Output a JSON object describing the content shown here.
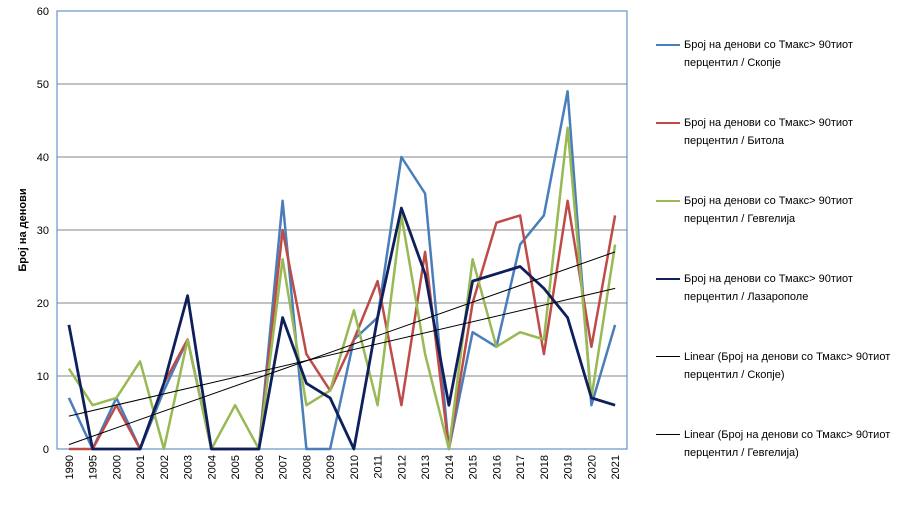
{
  "chart_data": {
    "type": "line",
    "title": "",
    "xlabel": "",
    "ylabel": "Број на денови",
    "ylim": [
      0,
      60
    ],
    "yticks": [
      0,
      10,
      20,
      30,
      40,
      50,
      60
    ],
    "grid": true,
    "legend_position": "right",
    "categories": [
      "1990",
      "1995",
      "2000",
      "2001",
      "2002",
      "2003",
      "2004",
      "2005",
      "2006",
      "2007",
      "2008",
      "2009",
      "2010",
      "2011",
      "2012",
      "2013",
      "2014",
      "2015",
      "2016",
      "2017",
      "2018",
      "2019",
      "2020",
      "2021"
    ],
    "series": [
      {
        "name": "Број на денови  со Тмакс> 90тиот перцентил  / Скопје",
        "color": "#4a7ebb",
        "width": 2.5,
        "values": [
          7,
          0,
          7,
          0,
          8,
          15,
          0,
          0,
          0,
          34,
          0,
          0,
          15,
          18,
          40,
          35,
          0,
          16,
          14,
          28,
          32,
          49,
          6,
          17
        ]
      },
      {
        "name": "Број на денови  со Тмакс> 90тиот перцентил  / Битола",
        "color": "#be4b48",
        "width": 2.5,
        "values": [
          0,
          0,
          6,
          0,
          9,
          15,
          0,
          0,
          0,
          30,
          13,
          8,
          15,
          23,
          6,
          27,
          0,
          20,
          31,
          32,
          13,
          34,
          14,
          32
        ]
      },
      {
        "name": "Број на денови  со Тмакс> 90тиот перцентил  / Гевгелија",
        "color": "#98b954",
        "width": 2.5,
        "values": [
          11,
          6,
          7,
          12,
          0,
          15,
          0,
          6,
          0,
          26,
          6,
          8,
          19,
          6,
          32,
          13,
          0,
          26,
          14,
          16,
          15,
          44,
          7,
          28
        ]
      },
      {
        "name": "Број на денови  со Тмакс> 90тиот перцентил  / Лазарополе",
        "color": "#0f1f5c",
        "width": 2.8,
        "values": [
          17,
          0,
          0,
          0,
          9,
          21,
          0,
          0,
          0,
          18,
          9,
          7,
          0,
          18,
          33,
          24,
          6,
          23,
          24,
          25,
          22,
          18,
          7,
          6
        ]
      }
    ],
    "trendlines": [
      {
        "name": "Linear (Број на денови  со Тмакс> 90тиот перцентил  / Скопје)",
        "color": "#000000",
        "start": 0.6,
        "end": 27
      },
      {
        "name": "Linear (Број на денови  со Тмакс> 90тиот перцентил  / Гевгелија)",
        "color": "#000000",
        "start": 4.5,
        "end": 22
      }
    ]
  },
  "legend": {
    "items": [
      {
        "label": "Број на денови  со Тмакс> 90тиот перцентил  / Скопје",
        "color": "#4a7ebb"
      },
      {
        "label": "Број на денови  со Тмакс> 90тиот перцентил  / Битола",
        "color": "#be4b48"
      },
      {
        "label": "Број на денови  со Тмакс> 90тиот перцентил  / Гевгелија",
        "color": "#98b954"
      },
      {
        "label": "Број на денови  со Тмакс> 90тиот перцентил  / Лазарополе",
        "color": "#0f1f5c"
      },
      {
        "label": "Linear (Број на денови  со Тмакс> 90тиот перцентил  / Скопје)",
        "color": "#000000"
      },
      {
        "label": "Linear (Број на денови  со Тмакс> 90тиот перцентил  / Гевгелија)",
        "color": "#000000"
      }
    ]
  }
}
